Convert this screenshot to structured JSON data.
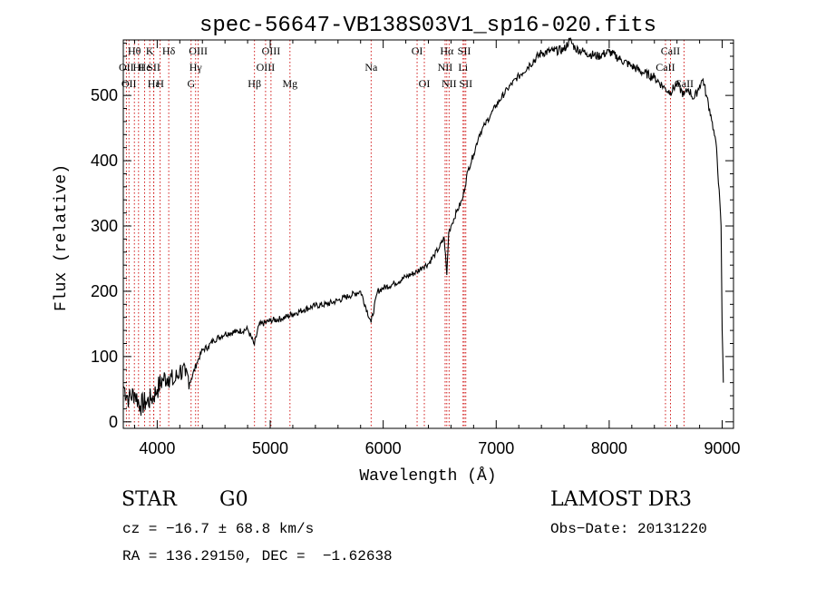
{
  "chart_data": {
    "type": "line",
    "title": "spec-56647-VB138S03V1_sp16-020.fits",
    "xlabel": "Wavelength (Å)",
    "ylabel": "Flux (relative)",
    "xlim": [
      3700,
      9100
    ],
    "ylim": [
      -10,
      585
    ],
    "xticks": [
      4000,
      5000,
      6000,
      7000,
      8000,
      9000
    ],
    "yticks": [
      0,
      100,
      200,
      300,
      400,
      500
    ],
    "grid": false,
    "series": [
      {
        "name": "spectrum",
        "x": [
          3700,
          3750,
          3800,
          3850,
          3900,
          3950,
          4000,
          4050,
          4100,
          4150,
          4200,
          4250,
          4300,
          4350,
          4400,
          4450,
          4500,
          4600,
          4700,
          4800,
          4860,
          4900,
          5000,
          5100,
          5200,
          5300,
          5400,
          5500,
          5600,
          5700,
          5800,
          5893,
          5950,
          6000,
          6100,
          6200,
          6300,
          6350,
          6400,
          6450,
          6500,
          6540,
          6563,
          6580,
          6600,
          6650,
          6700,
          6750,
          6800,
          6850,
          6900,
          6950,
          7000,
          7100,
          7200,
          7300,
          7400,
          7500,
          7600,
          7650,
          7700,
          7800,
          7900,
          8000,
          8100,
          8200,
          8300,
          8400,
          8498,
          8542,
          8600,
          8662,
          8700,
          8750,
          8800,
          8830,
          8860,
          8900,
          8950,
          8990,
          9000,
          9010
        ],
        "y": [
          55,
          35,
          45,
          25,
          30,
          35,
          50,
          65,
          70,
          60,
          80,
          70,
          65,
          90,
          110,
          115,
          125,
          135,
          138,
          142,
          118,
          148,
          155,
          158,
          165,
          172,
          178,
          180,
          186,
          193,
          200,
          152,
          200,
          205,
          212,
          222,
          230,
          238,
          242,
          255,
          268,
          282,
          225,
          290,
          300,
          322,
          340,
          385,
          410,
          440,
          455,
          470,
          485,
          510,
          530,
          548,
          565,
          568,
          570,
          585,
          572,
          565,
          560,
          567,
          555,
          545,
          535,
          528,
          510,
          505,
          518,
          500,
          510,
          495,
          515,
          525,
          500,
          470,
          420,
          300,
          140,
          60
        ]
      }
    ],
    "lines": [
      {
        "w": 3727,
        "label": "OII",
        "row": 2
      },
      {
        "w": 3750,
        "label": "OII",
        "row": 3
      },
      {
        "w": 3798,
        "label": "Hθ",
        "row": 1
      },
      {
        "w": 3835,
        "label": "HI",
        "row": 2
      },
      {
        "w": 3889,
        "label": "He",
        "row": 2
      },
      {
        "w": 3934,
        "label": "K",
        "row": 1
      },
      {
        "w": 3970,
        "label": "Hε",
        "row": 3
      },
      {
        "w": 3969,
        "label": "SII",
        "row": 2
      },
      {
        "w": 4026,
        "label": "H",
        "row": 3
      },
      {
        "w": 4102,
        "label": "Hδ",
        "row": 1
      },
      {
        "w": 4300,
        "label": "G",
        "row": 3
      },
      {
        "w": 4340,
        "label": "Hγ",
        "row": 2
      },
      {
        "w": 4363,
        "label": "OIII",
        "row": 1
      },
      {
        "w": 4861,
        "label": "Hβ",
        "row": 3
      },
      {
        "w": 4959,
        "label": "OIII",
        "row": 2
      },
      {
        "w": 5007,
        "label": "OIII",
        "row": 1
      },
      {
        "w": 5175,
        "label": "Mg",
        "row": 3
      },
      {
        "w": 5893,
        "label": "Na",
        "row": 2
      },
      {
        "w": 6300,
        "label": "OI",
        "row": 1
      },
      {
        "w": 6364,
        "label": "OI",
        "row": 3
      },
      {
        "w": 6548,
        "label": "NII",
        "row": 2
      },
      {
        "w": 6563,
        "label": "Hα",
        "row": 1
      },
      {
        "w": 6583,
        "label": "NII",
        "row": 3
      },
      {
        "w": 6707,
        "label": "Li",
        "row": 2
      },
      {
        "w": 6717,
        "label": "SII",
        "row": 1
      },
      {
        "w": 6731,
        "label": "SII",
        "row": 3
      },
      {
        "w": 8498,
        "label": "CaII",
        "row": 2
      },
      {
        "w": 8542,
        "label": "CaII",
        "row": 1
      },
      {
        "w": 8662,
        "label": "CaII",
        "row": 3
      }
    ]
  },
  "info": {
    "class": "STAR",
    "subclass": "G0",
    "survey": "LAMOST DR3",
    "cz": "cz = −16.7 ± 68.8 km/s",
    "obs_date": "Obs−Date: 20131220",
    "coords": "RA = 136.29150, DEC =  −1.62638"
  },
  "colors": {
    "line_marker": "#cc0000",
    "spectrum": "#000000"
  }
}
